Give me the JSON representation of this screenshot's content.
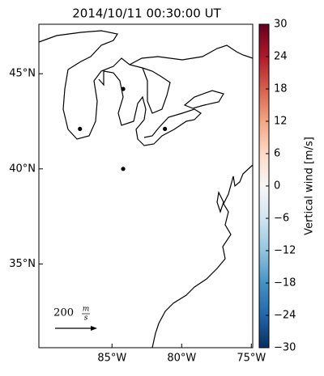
{
  "chart_data": {
    "type": "map",
    "title": "2014/10/11 00:30:00 UT",
    "xlim": [
      -90.25,
      -74.9
    ],
    "ylim": [
      30.6,
      47.6
    ],
    "xticks": [
      {
        "value": -85,
        "label": "85°W"
      },
      {
        "value": -80,
        "label": "80°W"
      },
      {
        "value": -75,
        "label": "75°W"
      }
    ],
    "yticks": [
      {
        "value": 35,
        "label": "35°N"
      },
      {
        "value": 40,
        "label": "40°N"
      },
      {
        "value": 45,
        "label": "45°N"
      }
    ],
    "points": {
      "color": "#000000",
      "lon": [
        -87.3,
        -84.2,
        -81.2,
        -84.2
      ],
      "lat": [
        42.1,
        44.2,
        42.1,
        40.0
      ]
    },
    "quiver_key": {
      "value": 200,
      "numerator": "m",
      "denominator": "s"
    },
    "colorbar": {
      "label": "Vertical wind [m/s]",
      "lim": [
        -30,
        30
      ],
      "ticks": [
        {
          "value": -30,
          "label": "−30"
        },
        {
          "value": -24,
          "label": "−24"
        },
        {
          "value": -18,
          "label": "−18"
        },
        {
          "value": -12,
          "label": "−12"
        },
        {
          "value": -6,
          "label": "−6"
        },
        0,
        6,
        12,
        18,
        24,
        30
      ],
      "colors": [
        "#053061",
        "#2166ac",
        "#4393c3",
        "#92c5de",
        "#d1e5f0",
        "#f7f7f7",
        "#fddbc7",
        "#f4a582",
        "#d6604d",
        "#b2182b",
        "#67001f"
      ]
    }
  }
}
